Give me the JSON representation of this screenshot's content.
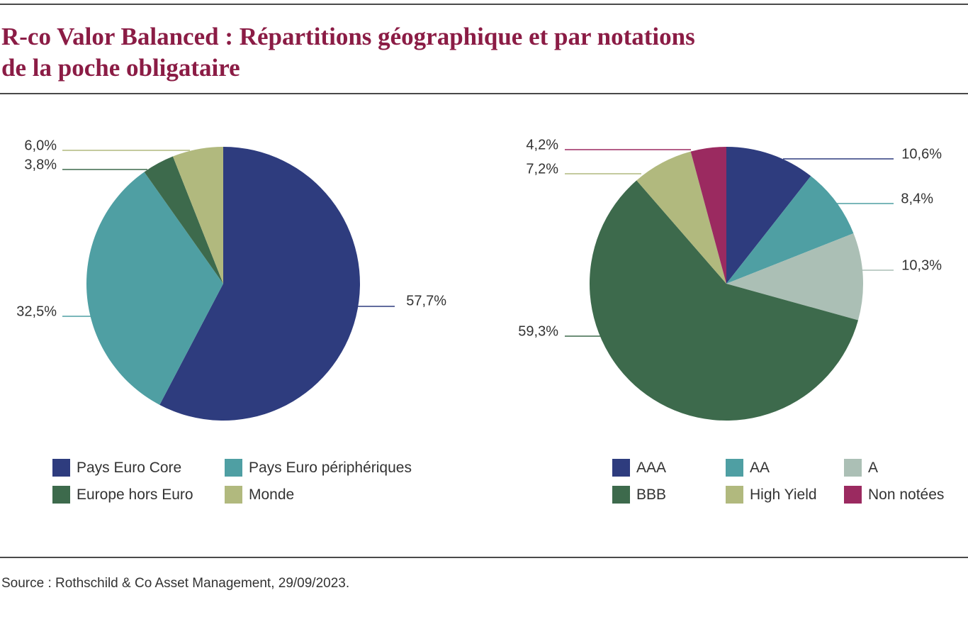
{
  "title": {
    "line1": "R-co Valor Balanced : Répartitions géographique et par notations",
    "line2": "de la poche obligataire",
    "color": "#8b1c45"
  },
  "source": "Source : Rothschild & Co Asset Management, 29/09/2023.",
  "chart_data": [
    {
      "type": "pie",
      "labels": [
        "Pays Euro Core",
        "Pays Euro périphériques",
        "Europe hors Euro",
        "Monde"
      ],
      "values": [
        57.7,
        32.5,
        3.8,
        6.0
      ],
      "value_labels": [
        "57,7%",
        "32,5%",
        "3,8%",
        "6,0%"
      ],
      "colors": [
        "#2e3c7e",
        "#4f9fa3",
        "#3d6a4c",
        "#b1b97e"
      ],
      "legend_placement": "bottom"
    },
    {
      "type": "pie",
      "labels": [
        "AAA",
        "AA",
        "A",
        "BBB",
        "High Yield",
        "Non notées"
      ],
      "values": [
        10.6,
        8.4,
        10.3,
        59.3,
        7.2,
        4.2
      ],
      "value_labels": [
        "10,6%",
        "8,4%",
        "10,3%",
        "59,3%",
        "7,2%",
        "4,2%"
      ],
      "colors": [
        "#2e3c7e",
        "#4f9fa3",
        "#abbfb5",
        "#3d6a4c",
        "#b1b97e",
        "#9b2a60"
      ],
      "legend_placement": "bottom"
    }
  ]
}
